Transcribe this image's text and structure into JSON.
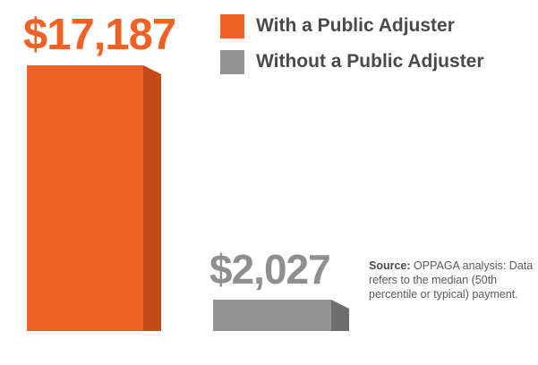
{
  "colors": {
    "with_adjuster": "#f06125",
    "with_adjuster_side": "#c24b17",
    "with_adjuster_top": "#d15420",
    "without_adjuster": "#939393",
    "without_adjuster_side": "#6e6e6e",
    "without_adjuster_top": "#7d7d7d",
    "legend_text": "#4a4a4a",
    "value_gray_label": "#8f8f8f"
  },
  "chart_data": {
    "type": "bar",
    "categories": [
      "With a Public Adjuster",
      "Without a Public Adjuster"
    ],
    "values": [
      17187,
      2027
    ],
    "value_labels": [
      "$17,187",
      "$2,027"
    ],
    "series": [
      {
        "name": "With a Public Adjuster",
        "values": [
          17187,
          null
        ]
      },
      {
        "name": "Without a Public Adjuster",
        "values": [
          null,
          2027
        ]
      }
    ],
    "title": "",
    "xlabel": "",
    "ylabel": "",
    "ylim": [
      0,
      17187
    ],
    "grid": false,
    "legend_position": "top-right"
  },
  "legend": {
    "items": [
      {
        "label": "With a Public Adjuster"
      },
      {
        "label": "Without a Public Adjuster"
      }
    ]
  },
  "source": {
    "label": "Source:",
    "text": "OPPAGA analysis: Data refers to the median (50th percentile or typical) payment."
  }
}
